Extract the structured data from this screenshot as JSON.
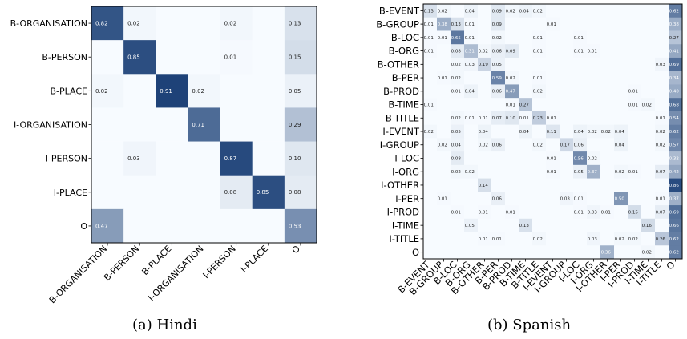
{
  "captions": [
    "(a) Hindi",
    "(b) Spanish"
  ],
  "colors": {
    "low": "#f7fbff",
    "high": "#08306b",
    "frame": "#000000"
  },
  "chart_data": [
    {
      "type": "heatmap",
      "title": "",
      "xlabel": "",
      "ylabel": "",
      "value_range": [
        0,
        1
      ],
      "rows": [
        "B-ORGANISATION",
        "B-PERSON",
        "B-PLACE",
        "I-ORGANISATION",
        "I-PERSON",
        "I-PLACE",
        "O"
      ],
      "cols": [
        "B-ORGANISATION",
        "B-PERSON",
        "B-PLACE",
        "I-ORGANISATION",
        "I-PERSON",
        "I-PLACE",
        "O"
      ],
      "values": [
        [
          0.82,
          0.02,
          null,
          null,
          0.02,
          null,
          0.13
        ],
        [
          null,
          0.85,
          null,
          null,
          0.01,
          null,
          0.15
        ],
        [
          0.02,
          null,
          0.91,
          0.02,
          null,
          null,
          0.05
        ],
        [
          null,
          null,
          null,
          0.71,
          null,
          null,
          0.29
        ],
        [
          null,
          0.03,
          null,
          null,
          0.87,
          null,
          0.1
        ],
        [
          null,
          null,
          null,
          null,
          0.08,
          0.85,
          0.08
        ],
        [
          0.47,
          null,
          null,
          null,
          null,
          null,
          0.53
        ]
      ]
    },
    {
      "type": "heatmap",
      "title": "",
      "xlabel": "",
      "ylabel": "",
      "value_range": [
        0,
        1
      ],
      "rows": [
        "B-EVENT",
        "B-GROUP",
        "B-LOC",
        "B-ORG",
        "B-OTHER",
        "B-PER",
        "B-PROD",
        "B-TIME",
        "B-TITLE",
        "I-EVENT",
        "I-GROUP",
        "I-LOC",
        "I-ORG",
        "I-OTHER",
        "I-PER",
        "I-PROD",
        "I-TIME",
        "I-TITLE",
        "O"
      ],
      "cols": [
        "B-EVENT",
        "B-GROUP",
        "B-LOC",
        "B-ORG",
        "B-OTHER",
        "B-PER",
        "B-PROD",
        "B-TIME",
        "B-TITLE",
        "I-EVENT",
        "I-GROUP",
        "I-LOC",
        "I-ORG",
        "I-OTHER",
        "I-PER",
        "I-PROD",
        "I-TIME",
        "I-TITLE",
        "O"
      ],
      "values": [
        [
          0.13,
          0.02,
          null,
          0.04,
          null,
          0.09,
          0.02,
          0.04,
          0.02,
          null,
          null,
          null,
          null,
          null,
          null,
          null,
          null,
          null,
          0.62
        ],
        [
          0.01,
          0.38,
          0.13,
          0.01,
          null,
          0.09,
          null,
          null,
          null,
          0.01,
          null,
          null,
          null,
          null,
          null,
          null,
          null,
          null,
          0.38
        ],
        [
          0.01,
          0.01,
          0.65,
          0.01,
          null,
          0.02,
          null,
          null,
          0.01,
          null,
          null,
          0.01,
          null,
          null,
          null,
          null,
          null,
          null,
          0.27
        ],
        [
          0.01,
          null,
          0.08,
          0.31,
          0.02,
          0.06,
          0.09,
          null,
          0.01,
          null,
          null,
          0.01,
          0.01,
          null,
          null,
          null,
          null,
          null,
          0.41
        ],
        [
          null,
          null,
          0.02,
          0.03,
          0.19,
          0.05,
          null,
          null,
          null,
          null,
          null,
          null,
          null,
          null,
          null,
          null,
          null,
          0.03,
          0.69
        ],
        [
          null,
          0.01,
          0.02,
          null,
          null,
          0.59,
          0.02,
          null,
          0.01,
          null,
          null,
          null,
          null,
          null,
          null,
          null,
          null,
          null,
          0.34
        ],
        [
          null,
          null,
          0.01,
          0.04,
          null,
          0.06,
          0.47,
          null,
          0.02,
          null,
          null,
          null,
          null,
          null,
          null,
          0.01,
          null,
          null,
          0.4
        ],
        [
          0.01,
          null,
          null,
          null,
          null,
          null,
          0.01,
          0.27,
          null,
          null,
          null,
          null,
          null,
          null,
          null,
          0.01,
          0.02,
          null,
          0.68
        ],
        [
          null,
          null,
          0.02,
          0.01,
          0.01,
          0.07,
          0.1,
          0.01,
          0.23,
          0.01,
          null,
          null,
          null,
          null,
          null,
          null,
          null,
          0.01,
          0.54
        ],
        [
          0.02,
          null,
          0.05,
          null,
          0.04,
          null,
          null,
          0.04,
          null,
          0.11,
          null,
          0.04,
          0.02,
          0.02,
          0.04,
          null,
          null,
          0.02,
          0.62
        ],
        [
          null,
          0.02,
          0.04,
          null,
          0.02,
          0.06,
          null,
          null,
          0.02,
          null,
          0.17,
          0.06,
          null,
          null,
          0.04,
          null,
          null,
          0.02,
          0.57
        ],
        [
          null,
          null,
          0.08,
          null,
          null,
          null,
          null,
          null,
          null,
          0.01,
          null,
          0.56,
          0.02,
          null,
          null,
          null,
          null,
          null,
          0.32
        ],
        [
          null,
          null,
          0.02,
          0.02,
          null,
          null,
          null,
          null,
          null,
          0.01,
          null,
          0.05,
          0.37,
          null,
          0.02,
          0.01,
          null,
          0.07,
          0.42
        ],
        [
          null,
          null,
          null,
          null,
          0.14,
          null,
          null,
          null,
          null,
          null,
          null,
          null,
          null,
          null,
          null,
          null,
          null,
          null,
          0.86
        ],
        [
          null,
          0.01,
          null,
          null,
          null,
          0.06,
          null,
          null,
          null,
          null,
          0.03,
          0.01,
          null,
          null,
          0.5,
          null,
          null,
          0.01,
          0.37
        ],
        [
          null,
          null,
          0.01,
          null,
          0.01,
          null,
          0.01,
          null,
          null,
          null,
          null,
          0.01,
          0.03,
          0.01,
          null,
          0.15,
          null,
          0.07,
          0.69
        ],
        [
          null,
          null,
          null,
          0.05,
          null,
          null,
          null,
          0.13,
          null,
          null,
          null,
          null,
          null,
          null,
          null,
          null,
          0.16,
          null,
          0.66
        ],
        [
          null,
          null,
          null,
          null,
          0.01,
          0.01,
          null,
          null,
          0.02,
          null,
          null,
          null,
          0.03,
          null,
          0.02,
          0.02,
          null,
          0.26,
          0.62
        ],
        [
          null,
          null,
          null,
          null,
          null,
          null,
          null,
          null,
          null,
          null,
          null,
          null,
          null,
          0.36,
          null,
          null,
          0.02,
          null,
          0.62
        ]
      ]
    }
  ]
}
